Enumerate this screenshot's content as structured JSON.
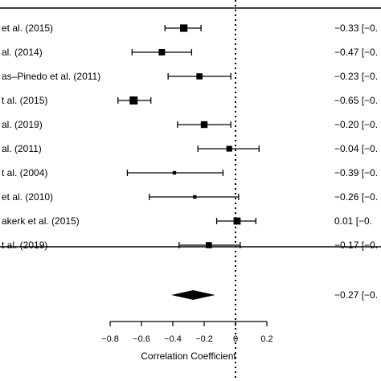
{
  "chart_data": {
    "type": "forest",
    "xlabel": "Correlation Coefficient",
    "xlim": [
      -0.8,
      0.2
    ],
    "xticks": [
      "-0.8",
      "-0.6",
      "-0.4",
      "-0.2",
      "0",
      "0.2"
    ],
    "xtick_values": [
      -0.8,
      -0.6,
      -0.4,
      -0.2,
      0,
      0.2
    ],
    "reference_line": 0,
    "studies": [
      {
        "label": "et al. (2015)",
        "estimate": -0.33,
        "lower": -0.45,
        "upper": -0.22,
        "weight": 0.9,
        "text": "−0.33 [−0."
      },
      {
        "label": "al. (2014)",
        "estimate": -0.47,
        "lower": -0.66,
        "upper": -0.28,
        "weight": 0.75,
        "text": "−0.47 [−0."
      },
      {
        "label": "as–Pinedo et al. (2011)",
        "estimate": -0.23,
        "lower": -0.43,
        "upper": -0.03,
        "weight": 0.7,
        "text": "−0.23 [−0."
      },
      {
        "label": "t al. (2015)",
        "estimate": -0.65,
        "lower": -0.75,
        "upper": -0.54,
        "weight": 1.0,
        "text": "−0.65 [−0."
      },
      {
        "label": "al. (2019)",
        "estimate": -0.2,
        "lower": -0.37,
        "upper": -0.03,
        "weight": 0.8,
        "text": "−0.20 [−0."
      },
      {
        "label": "al. (2011)",
        "estimate": -0.04,
        "lower": -0.24,
        "upper": 0.15,
        "weight": 0.65,
        "text": "−0.04 [−0."
      },
      {
        "label": "t al. (2004)",
        "estimate": -0.39,
        "lower": -0.69,
        "upper": -0.08,
        "weight": 0.3,
        "text": "−0.39 [−0."
      },
      {
        "label": "et al. (2010)",
        "estimate": -0.26,
        "lower": -0.55,
        "upper": 0.02,
        "weight": 0.3,
        "text": "−0.26 [−0."
      },
      {
        "label": "akerk et al. (2015)",
        "estimate": 0.01,
        "lower": -0.12,
        "upper": 0.13,
        "weight": 0.85,
        "text": "0.01 [−0."
      },
      {
        "label": "t al. (2019)",
        "estimate": -0.17,
        "lower": -0.36,
        "upper": 0.03,
        "weight": 0.7,
        "text": "−0.17 [−0."
      }
    ],
    "summary": {
      "estimate": -0.27,
      "lower": -0.41,
      "upper": -0.13,
      "text": "−0.27 [−0."
    }
  }
}
